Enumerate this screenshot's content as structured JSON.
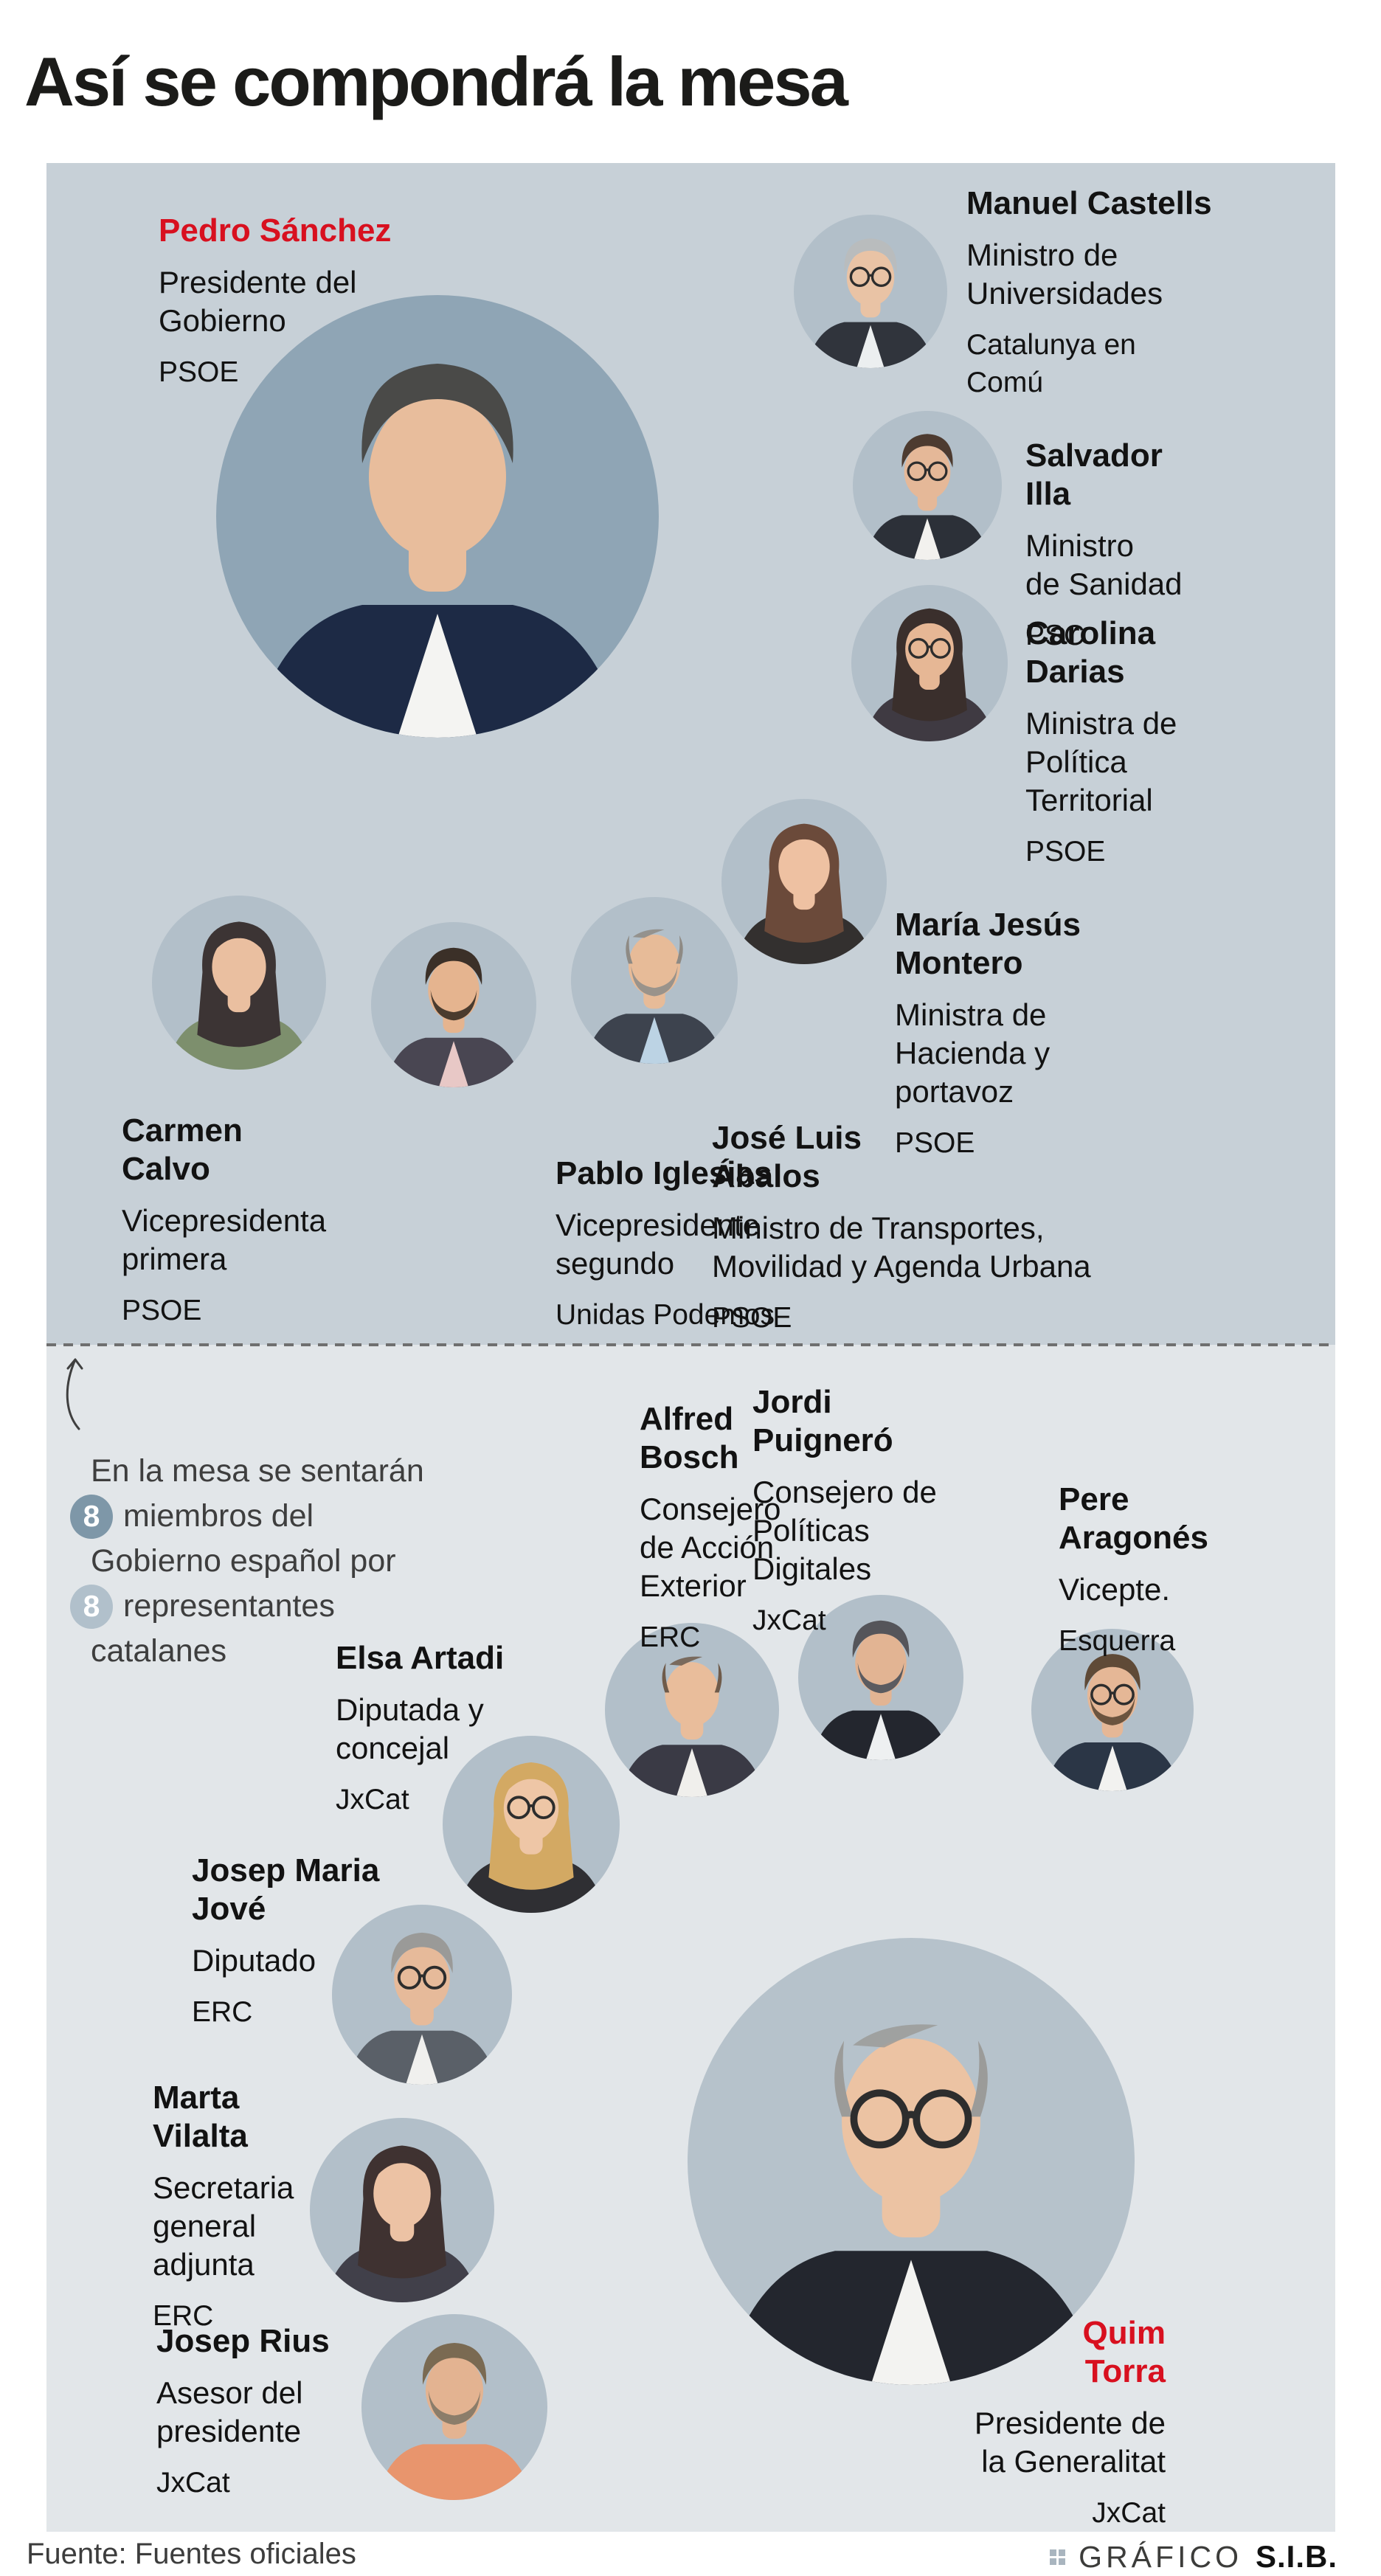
{
  "title": "Así se compondrá la mesa",
  "colors": {
    "accent_red": "#d8101f",
    "box_upper": "#c7d0d7",
    "box_lower": "#e2e6e9",
    "badge_dark": "#7e97a8",
    "badge_light": "#b1c0cb",
    "icon_gray": "#a9b5bf"
  },
  "annotation": {
    "line1": "En la mesa se sentarán",
    "count1": "8",
    "line2": "miembros del",
    "line3": "Gobierno español por",
    "count2": "8",
    "line4": "representantes",
    "line5": "catalanes"
  },
  "people": [
    {
      "id": "pedro-sanchez",
      "name": "Pedro Sánchez",
      "role": "Presidente del\nGobierno",
      "party": "PSOE",
      "accent": true,
      "avatar": {
        "bg": "#8fa5b5",
        "skin": "#e8bd9c",
        "hair": "#4a4a48",
        "top": "#1d2a45",
        "shirt": "#f4f4f2",
        "style": "short"
      }
    },
    {
      "id": "manuel-castells",
      "name": "Manuel Castells",
      "role": "Ministro de\nUniversidades",
      "party": "Catalunya en\nComú",
      "avatar": {
        "bg": "#b2bfc9",
        "skin": "#e9c3a5",
        "hair": "#b9bcbd",
        "top": "#30343c",
        "shirt": "#eceff0",
        "style": "short",
        "glasses": true
      }
    },
    {
      "id": "salvador-illa",
      "name": "Salvador\nIlla",
      "role": "Ministro\nde Sanidad",
      "party": "PSC",
      "avatar": {
        "bg": "#b2bfc9",
        "skin": "#e5b898",
        "hair": "#4d3b30",
        "top": "#2c3038",
        "shirt": "#f2f1ee",
        "style": "short",
        "glasses": true
      }
    },
    {
      "id": "carolina-darias",
      "name": "Carolina\nDarias",
      "role": "Ministra de\nPolítica\nTerritorial",
      "party": "PSOE",
      "avatar": {
        "bg": "#b2bfc9",
        "skin": "#e6b795",
        "hair": "#3a2f2c",
        "top": "#3f3a42",
        "style": "long",
        "glasses": true
      }
    },
    {
      "id": "maria-jesus-montero",
      "name": "María Jesús\nMontero",
      "role": "Ministra de\nHacienda y\nportavoz",
      "party": "PSOE",
      "avatar": {
        "bg": "#b2bfc9",
        "skin": "#eec1a2",
        "hair": "#6b4a3a",
        "top": "#33302f",
        "style": "long"
      }
    },
    {
      "id": "carmen-calvo",
      "name": "Carmen\nCalvo",
      "role": "Vicepresidenta\nprimera",
      "party": "PSOE",
      "avatar": {
        "bg": "#b2bfc9",
        "skin": "#eabfa0",
        "hair": "#3c3434",
        "top": "#7d8f6d",
        "style": "long"
      }
    },
    {
      "id": "pablo-iglesias",
      "name": "Pablo Iglesias",
      "role": "Vicepresidente\nsegundo",
      "party": "Unidas Podemos",
      "avatar": {
        "bg": "#b2bfc9",
        "skin": "#e5b48f",
        "hair": "#3b3028",
        "top": "#494652",
        "shirt": "#e8c8c6",
        "style": "short",
        "beard": "#4a3b2e"
      }
    },
    {
      "id": "jose-luis-abalos",
      "name": "José Luis\nÁbalos",
      "role": "Ministro de Transportes,\nMovilidad y Agenda Urbana",
      "party": "PSOE",
      "avatar": {
        "bg": "#b2bfc9",
        "skin": "#e7bb98",
        "hair": "#8e8a84",
        "top": "#3d434e",
        "shirt": "#bcd3e4",
        "style": "bald",
        "beard": "#9a938b"
      }
    },
    {
      "id": "alfred-bosch",
      "name": "Alfred\nBosch",
      "role": "Consejero\nde Acción\nExterior",
      "party": "ERC",
      "avatar": {
        "bg": "#b2bfc9",
        "skin": "#e9bd9b",
        "hair": "#6f5b4a",
        "top": "#3a3a45",
        "shirt": "#f0efec",
        "style": "bald"
      }
    },
    {
      "id": "jordi-puignero",
      "name": "Jordi\nPuigneró",
      "role": "Consejero de\nPolíticas\nDigitales",
      "party": "JxCat",
      "avatar": {
        "bg": "#b2bfc9",
        "skin": "#e2b493",
        "hair": "#55555a",
        "top": "#23262e",
        "shirt": "#eef0f1",
        "style": "short",
        "beard": "#5b5b60"
      }
    },
    {
      "id": "pere-aragones",
      "name": "Pere\nAragonés",
      "role": "Vicepte.",
      "party": "Esquerra",
      "avatar": {
        "bg": "#b2bfc9",
        "skin": "#e5b796",
        "hair": "#5f4a37",
        "top": "#2b3646",
        "shirt": "#f2f2f0",
        "style": "short",
        "glasses": true,
        "beard": "#6b543f"
      }
    },
    {
      "id": "elsa-artadi",
      "name": "Elsa Artadi",
      "role": "Diputada y\nconcejal",
      "party": "JxCat",
      "avatar": {
        "bg": "#b2bfc9",
        "skin": "#eec6a6",
        "hair": "#d3a963",
        "top": "#2f2f33",
        "style": "long",
        "glasses": true
      }
    },
    {
      "id": "josep-maria-jove",
      "name": "Josep Maria\nJové",
      "role": "Diputado",
      "party": "ERC",
      "avatar": {
        "bg": "#b2bfc9",
        "skin": "#e6ba9a",
        "hair": "#9a9a98",
        "top": "#5a6068",
        "shirt": "#f0f0ee",
        "style": "short",
        "glasses": true
      }
    },
    {
      "id": "marta-vilalta",
      "name": "Marta\nVilalta",
      "role": "Secretaria\ngeneral\nadjunta",
      "party": "ERC",
      "avatar": {
        "bg": "#b2bfc9",
        "skin": "#ecc2a4",
        "hair": "#3f3231",
        "top": "#41404a",
        "style": "long"
      }
    },
    {
      "id": "josep-rius",
      "name": "Josep Rius",
      "role": "Asesor del\npresidente",
      "party": "JxCat",
      "avatar": {
        "bg": "#b2bfc9",
        "skin": "#e3b391",
        "hair": "#7a6a52",
        "top": "#e8956d",
        "style": "short",
        "beard": "#8b7d6a"
      }
    },
    {
      "id": "quim-torra",
      "name": "Quim\nTorra",
      "role": "Presidente de\nla Generalitat",
      "party": "JxCat",
      "accent": true,
      "avatar": {
        "bg": "#b6c2cb",
        "skin": "#ecc3a3",
        "hair": "#9b9b99",
        "top": "#23262e",
        "shirt": "#f3f3f1",
        "style": "bald",
        "glasses": true
      }
    }
  ],
  "footer": {
    "source": "Fuente: Fuentes oficiales",
    "credit_word": "GRÁFICO",
    "credit_bold": "S.I.B."
  }
}
